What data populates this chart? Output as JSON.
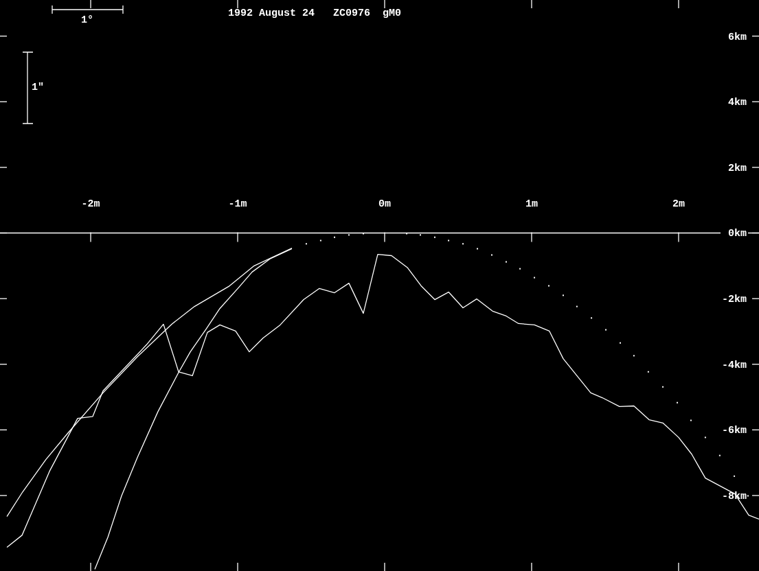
{
  "chart_data": {
    "type": "line",
    "title": "1992 August 24   ZC0976  gM0",
    "annotations": [
      "1°",
      "1\""
    ],
    "xlim": [
      -2.617,
      2.547
    ],
    "ylim": [
      -10.3,
      7.1
    ],
    "xticks": [
      {
        "value": -2,
        "label": "-2m"
      },
      {
        "value": -1,
        "label": "-1m"
      },
      {
        "value": 0,
        "label": "0m"
      },
      {
        "value": 1,
        "label": "1m"
      },
      {
        "value": 2,
        "label": "2m"
      }
    ],
    "yticks": [
      {
        "value": 6,
        "label": "6km"
      },
      {
        "value": 4,
        "label": "4km"
      },
      {
        "value": 2,
        "label": "2km"
      },
      {
        "value": 0,
        "label": "0km"
      },
      {
        "value": -2,
        "label": "-2km"
      },
      {
        "value": -4,
        "label": "-4km"
      },
      {
        "value": -6,
        "label": "-6km"
      },
      {
        "value": -8,
        "label": "-8km"
      }
    ],
    "series": [
      {
        "color": "#ffffff",
        "x": [
          -2.57,
          -2.463,
          -2.304,
          -2.15,
          -1.916,
          -1.682,
          -1.449,
          -1.294,
          -1.061,
          -0.888,
          -0.631
        ],
        "values": [
          -8.64,
          -7.89,
          -6.9,
          -6.07,
          -4.87,
          -3.77,
          -2.78,
          -2.24,
          -1.63,
          -1.0,
          -0.46
        ]
      },
      {
        "color": "#ffffff",
        "x": [
          -1.972,
          -1.883,
          -1.79,
          -1.682,
          -1.542,
          -1.402,
          -1.322,
          -1.215,
          -1.121,
          -0.995,
          -0.902,
          -0.78,
          -0.631
        ],
        "values": [
          -10.25,
          -9.27,
          -8.01,
          -6.84,
          -5.44,
          -4.25,
          -3.62,
          -2.93,
          -2.3,
          -1.67,
          -1.19,
          -0.79,
          -0.48
        ]
      },
      {
        "color": "#ffffff",
        "x": [
          -2.57,
          -2.467,
          -2.28,
          -2.089,
          -1.986,
          -1.916,
          -1.621,
          -1.505,
          -1.402,
          -1.308,
          -1.206,
          -1.121,
          -1.014,
          -0.921,
          -0.827,
          -0.715,
          -0.551,
          -0.444,
          -0.341,
          -0.243,
          -0.145,
          -0.047,
          0.047,
          0.154,
          0.248,
          0.341,
          0.435,
          0.533,
          0.626,
          0.734,
          0.827,
          0.911,
          1.019,
          1.121,
          1.215,
          1.402,
          1.481,
          1.598,
          1.696,
          1.799,
          1.893,
          2.0,
          2.089,
          2.182,
          2.383,
          2.477,
          2.547
        ],
        "values": [
          -9.58,
          -9.21,
          -7.26,
          -5.65,
          -5.59,
          -4.81,
          -3.41,
          -2.78,
          -4.23,
          -4.35,
          -3.03,
          -2.8,
          -2.99,
          -3.62,
          -3.2,
          -2.82,
          -2.03,
          -1.69,
          -1.82,
          -1.53,
          -2.45,
          -0.65,
          -0.69,
          -1.05,
          -1.61,
          -2.03,
          -1.8,
          -2.28,
          -2.01,
          -2.38,
          -2.53,
          -2.76,
          -2.8,
          -2.99,
          -3.83,
          -4.87,
          -5.02,
          -5.29,
          -5.27,
          -5.69,
          -5.79,
          -6.23,
          -6.74,
          -7.47,
          -7.95,
          -8.6,
          -8.72
        ]
      },
      {
        "type": "scatter",
        "color": "#ffffff",
        "marker": "square",
        "x": [
          -0.533,
          -0.435,
          -0.341,
          -0.243,
          -0.145,
          0.15,
          0.243,
          0.341,
          0.435,
          0.533,
          0.631,
          0.729,
          0.827,
          0.921,
          1.019,
          1.117,
          1.215,
          1.308,
          1.407,
          1.505,
          1.603,
          1.696,
          1.794,
          1.893,
          1.991,
          2.084,
          2.182,
          2.28,
          2.379,
          2.472
        ],
        "values": [
          -0.33,
          -0.23,
          -0.13,
          -0.06,
          -0.02,
          -0.02,
          -0.06,
          -0.13,
          -0.23,
          -0.33,
          -0.48,
          -0.67,
          -0.88,
          -1.09,
          -1.36,
          -1.61,
          -1.9,
          -2.24,
          -2.59,
          -2.95,
          -3.35,
          -3.74,
          -4.23,
          -4.69,
          -5.17,
          -5.71,
          -6.23,
          -6.78,
          -7.41,
          -8.01
        ]
      }
    ]
  }
}
